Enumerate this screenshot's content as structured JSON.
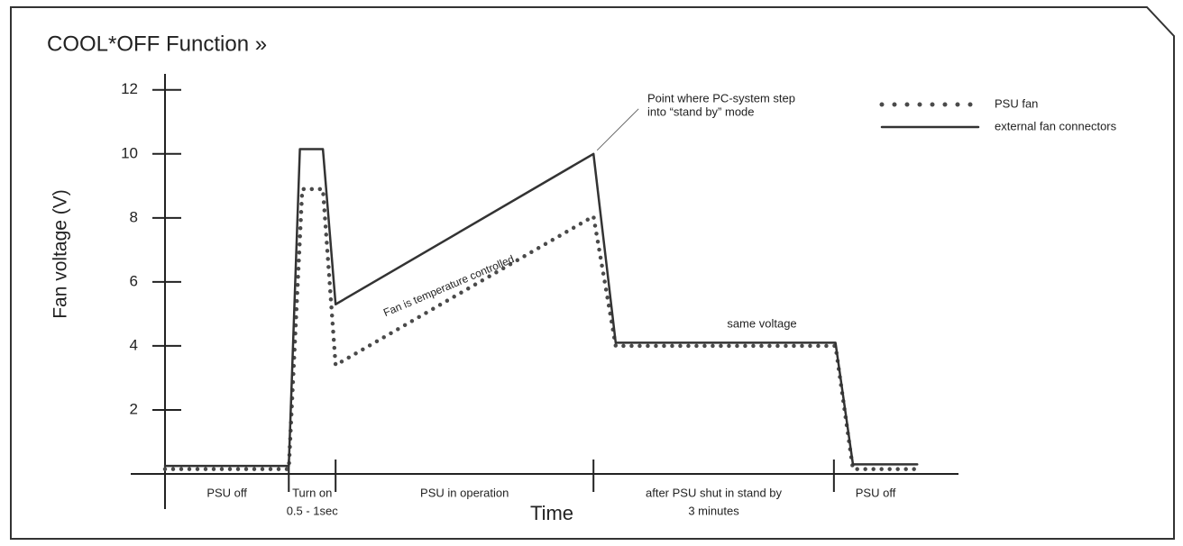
{
  "chart_data": {
    "type": "line",
    "title": "COOL*OFF Function »",
    "y_label": "Fan voltage (V)",
    "x_label": "Time",
    "ylim": [
      0,
      12.5
    ],
    "yticks": [
      2,
      4,
      6,
      8,
      10,
      12
    ],
    "xlim": [
      0,
      100
    ],
    "phase_boundaries": [
      15.6,
      21.5,
      54,
      84.3
    ],
    "phases": [
      [
        "PSU off"
      ],
      [
        "Turn on",
        "0.5 - 1sec"
      ],
      [
        "PSU in operation"
      ],
      [
        "after PSU shut in stand by",
        "3 minutes"
      ],
      [
        "PSU off"
      ]
    ],
    "series": [
      {
        "name": "PSU fan",
        "style": "dotted",
        "color": "#4a4a4a",
        "x": [
          0,
          15.6,
          17.3,
          19.9,
          21.5,
          54,
          56.8,
          84.5,
          86.7,
          94.8
        ],
        "values": [
          0.15,
          0.15,
          8.9,
          8.9,
          3.4,
          8.05,
          4.0,
          4.0,
          0.15,
          0.15
        ]
      },
      {
        "name": "external fan connectors",
        "style": "solid",
        "color": "#333333",
        "x": [
          0,
          15.6,
          17,
          19.9,
          21.5,
          54,
          56.8,
          84.5,
          86.7,
          94.8
        ],
        "values": [
          0.25,
          0.25,
          10.15,
          10.15,
          5.3,
          10,
          4.1,
          4.1,
          0.3,
          0.3
        ]
      }
    ],
    "annotations": {
      "standby": [
        "Point where PC-system step",
        "into “stand by” mode"
      ],
      "temperature": "Fan is temperature controlled",
      "same": "same voltage"
    }
  }
}
